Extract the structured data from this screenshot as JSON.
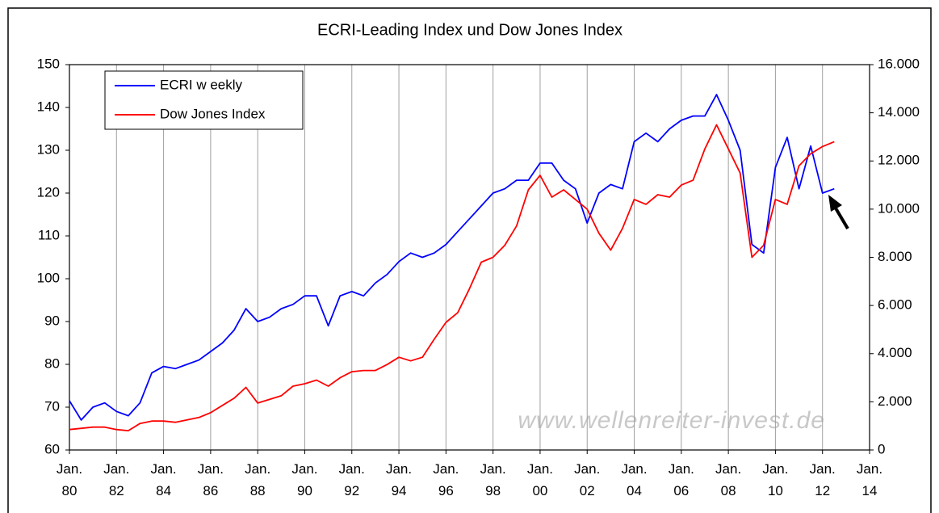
{
  "chart_data": {
    "type": "line",
    "title": "ECRI-Leading Index und Dow Jones Index",
    "watermark": "www.wellenreiter-invest.de",
    "x": [
      1980,
      1980.5,
      1981,
      1981.5,
      1982,
      1982.5,
      1983,
      1983.5,
      1984,
      1984.5,
      1985,
      1985.5,
      1986,
      1986.5,
      1987,
      1987.5,
      1988,
      1988.5,
      1989,
      1989.5,
      1990,
      1990.5,
      1991,
      1991.5,
      1992,
      1992.5,
      1993,
      1993.5,
      1994,
      1994.5,
      1995,
      1995.5,
      1996,
      1996.5,
      1997,
      1997.5,
      1998,
      1998.5,
      1999,
      1999.5,
      2000,
      2000.5,
      2001,
      2001.5,
      2002,
      2002.5,
      2003,
      2003.5,
      2004,
      2004.5,
      2005,
      2005.5,
      2006,
      2006.5,
      2007,
      2007.5,
      2008,
      2008.5,
      2009,
      2009.5,
      2010,
      2010.5,
      2011,
      2011.5,
      2012,
      2012.5
    ],
    "series": [
      {
        "name": "ECRI w eekly",
        "color": "#0000ff",
        "axis": "y",
        "values": [
          71.5,
          67,
          70,
          71,
          69,
          68,
          71,
          78,
          79.5,
          79,
          80,
          81,
          83,
          85,
          88,
          93,
          90,
          91,
          93,
          94,
          96,
          96,
          89,
          96,
          97,
          96,
          99,
          101,
          104,
          106,
          105,
          106,
          108,
          111,
          114,
          117,
          120,
          121,
          123,
          123,
          127,
          127,
          123,
          121,
          113,
          120,
          122,
          121,
          132,
          134,
          132,
          135,
          137,
          138,
          138,
          143,
          137,
          130,
          108,
          106,
          126,
          133,
          121,
          131,
          120,
          121
        ]
      },
      {
        "name": "Dow Jones Index",
        "color": "#ff0000",
        "axis": "y2",
        "values": [
          850,
          900,
          950,
          950,
          850,
          800,
          1100,
          1200,
          1200,
          1150,
          1250,
          1350,
          1550,
          1850,
          2150,
          2600,
          1950,
          2100,
          2250,
          2650,
          2750,
          2900,
          2650,
          3000,
          3250,
          3300,
          3300,
          3550,
          3850,
          3700,
          3850,
          4600,
          5300,
          5700,
          6700,
          7800,
          8000,
          8500,
          9300,
          10800,
          11400,
          10500,
          10800,
          10400,
          10000,
          9000,
          8300,
          9200,
          10400,
          10200,
          10600,
          10500,
          11000,
          11200,
          12500,
          13500,
          12500,
          11500,
          8000,
          8500,
          10400,
          10200,
          11800,
          12300,
          12600,
          12800
        ]
      }
    ],
    "xlim": [
      1980,
      2014
    ],
    "xticks": [
      {
        "value": 1980,
        "label": "Jan. 80"
      },
      {
        "value": 1982,
        "label": "Jan. 82"
      },
      {
        "value": 1984,
        "label": "Jan. 84"
      },
      {
        "value": 1986,
        "label": "Jan. 86"
      },
      {
        "value": 1988,
        "label": "Jan. 88"
      },
      {
        "value": 1990,
        "label": "Jan. 90"
      },
      {
        "value": 1992,
        "label": "Jan. 92"
      },
      {
        "value": 1994,
        "label": "Jan. 94"
      },
      {
        "value": 1996,
        "label": "Jan. 96"
      },
      {
        "value": 1998,
        "label": "Jan. 98"
      },
      {
        "value": 2000,
        "label": "Jan. 00"
      },
      {
        "value": 2002,
        "label": "Jan. 02"
      },
      {
        "value": 2004,
        "label": "Jan. 04"
      },
      {
        "value": 2006,
        "label": "Jan. 06"
      },
      {
        "value": 2008,
        "label": "Jan. 08"
      },
      {
        "value": 2010,
        "label": "Jan. 10"
      },
      {
        "value": 2012,
        "label": "Jan. 12"
      },
      {
        "value": 2014,
        "label": "Jan. 14"
      }
    ],
    "ylim": [
      60,
      150
    ],
    "yticks": [
      60,
      70,
      80,
      90,
      100,
      110,
      120,
      130,
      140,
      150
    ],
    "y2lim": [
      0,
      16000
    ],
    "y2ticks": [
      0,
      {
        "value": 2000,
        "label": "2.000"
      },
      {
        "value": 4000,
        "label": "4.000"
      },
      {
        "value": 6000,
        "label": "6.000"
      },
      {
        "value": 8000,
        "label": "8.000"
      },
      {
        "value": 10000,
        "label": "10.000"
      },
      {
        "value": 12000,
        "label": "12.000"
      },
      {
        "value": 14000,
        "label": "14.000"
      },
      {
        "value": 16000,
        "label": "16.000"
      }
    ],
    "grid": "x",
    "legend": "upper left"
  }
}
